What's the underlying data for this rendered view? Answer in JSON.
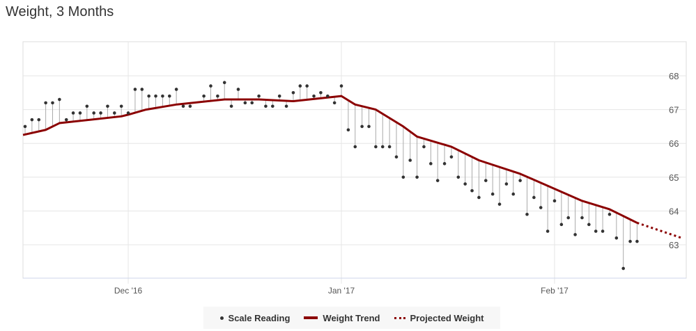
{
  "title": "Weight, 3 Months",
  "colors": {
    "trend": "#8b0000",
    "reading": "#333333",
    "stem": "#aaaaaa",
    "grid": "#e6e6e6"
  },
  "legend": [
    {
      "label": "Scale Reading",
      "icon": "dot-icon"
    },
    {
      "label": "Weight Trend",
      "icon": "solid-line-icon"
    },
    {
      "label": "Projected Weight",
      "icon": "dotted-line-icon"
    }
  ],
  "chart_data": {
    "type": "line",
    "title": "Weight, 3 Months",
    "xlabel": "",
    "ylabel": "",
    "x_unit": "day offset from first reading",
    "xlim": [
      -0.3,
      95.5
    ],
    "ylim": [
      62.2,
      68.9
    ],
    "y_ticks": [
      63,
      64,
      65,
      66,
      67,
      68
    ],
    "x_ticks": [
      {
        "day": 15,
        "label": "Dec '16"
      },
      {
        "day": 46,
        "label": "Jan '17"
      },
      {
        "day": 77,
        "label": "Feb '17"
      }
    ],
    "legend_position": "bottom-center",
    "grid": true,
    "series": [
      {
        "name": "Scale Reading",
        "type": "scatter",
        "values": [
          66.5,
          66.7,
          66.7,
          67.2,
          67.2,
          67.3,
          66.7,
          66.9,
          66.9,
          67.1,
          66.9,
          66.9,
          67.1,
          66.9,
          67.1,
          66.9,
          67.6,
          67.6,
          67.4,
          67.4,
          67.4,
          67.4,
          67.6,
          67.1,
          67.1,
          null,
          67.4,
          67.7,
          67.4,
          67.8,
          67.1,
          67.6,
          67.2,
          67.2,
          67.4,
          67.1,
          67.1,
          67.4,
          67.1,
          67.5,
          67.7,
          67.7,
          67.4,
          67.5,
          67.4,
          67.2,
          67.7,
          66.4,
          65.9,
          66.5,
          66.5,
          65.9,
          65.9,
          65.9,
          65.6,
          65.0,
          65.5,
          65.0,
          65.9,
          65.4,
          64.9,
          65.4,
          65.6,
          65.0,
          64.8,
          64.6,
          64.4,
          64.9,
          64.5,
          64.2,
          64.8,
          64.5,
          64.9,
          63.9,
          64.4,
          64.1,
          63.4,
          64.3,
          63.6,
          63.8,
          63.3,
          63.8,
          63.6,
          63.4,
          63.4,
          63.9,
          63.2,
          62.3,
          63.1,
          63.1
        ]
      },
      {
        "name": "Weight Trend",
        "type": "line",
        "points": [
          [
            -0.3,
            66.25
          ],
          [
            3,
            66.4
          ],
          [
            5,
            66.6
          ],
          [
            14,
            66.8
          ],
          [
            15,
            66.85
          ],
          [
            17.6,
            67.0
          ],
          [
            22,
            67.15
          ],
          [
            29,
            67.3
          ],
          [
            34,
            67.3
          ],
          [
            39,
            67.25
          ],
          [
            46,
            67.4
          ],
          [
            48,
            67.15
          ],
          [
            51,
            67.0
          ],
          [
            55,
            66.5
          ],
          [
            57,
            66.2
          ],
          [
            62,
            65.9
          ],
          [
            66,
            65.5
          ],
          [
            72,
            65.1
          ],
          [
            76.5,
            64.7
          ],
          [
            81,
            64.3
          ],
          [
            85,
            64.05
          ],
          [
            87.5,
            63.8
          ],
          [
            89,
            63.65
          ]
        ]
      },
      {
        "name": "Projected Weight",
        "type": "line-dotted",
        "points": [
          [
            89,
            63.65
          ],
          [
            95.5,
            63.2
          ]
        ]
      }
    ]
  }
}
